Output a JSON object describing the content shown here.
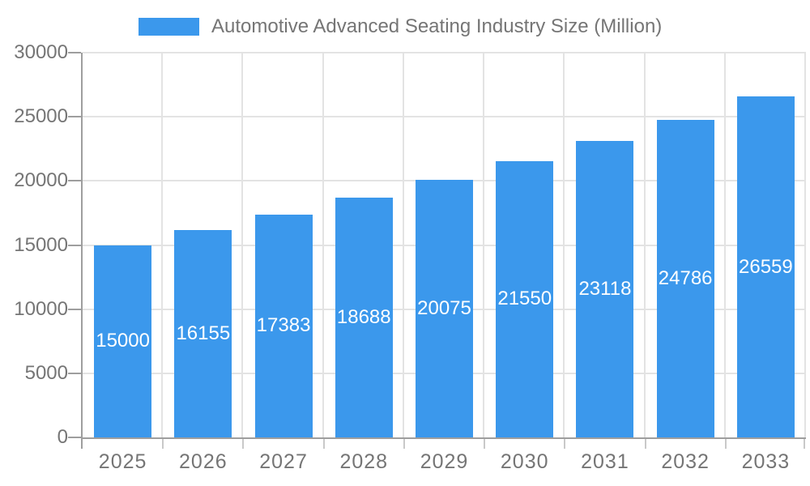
{
  "legend": {
    "label": "Automotive Advanced Seating Industry Size (Million)"
  },
  "chart_data": {
    "type": "bar",
    "title": "Automotive Advanced Seating Industry Size (Million)",
    "categories": [
      "2025",
      "2026",
      "2027",
      "2028",
      "2029",
      "2030",
      "2031",
      "2032",
      "2033"
    ],
    "values": [
      15000,
      16155,
      17383,
      18688,
      20075,
      21550,
      23118,
      24786,
      26559
    ],
    "bar_labels": [
      15000,
      16155,
      17383,
      18688,
      20075,
      21550,
      23118,
      24786,
      26559
    ],
    "xlabel": "",
    "ylabel": "",
    "ylim": [
      0,
      30000
    ],
    "yticks": [
      0,
      5000,
      10000,
      15000,
      20000,
      25000,
      30000
    ],
    "grid": true,
    "legend_position": "top"
  },
  "colors": {
    "bar": "#3b98ec",
    "grid": "#e3e3e3",
    "axis_line": "#9e9e9e",
    "x_tick": "#c9c9c9",
    "axis_text": "#757575",
    "bar_label_text": "#ffffff",
    "background": "#ffffff"
  }
}
